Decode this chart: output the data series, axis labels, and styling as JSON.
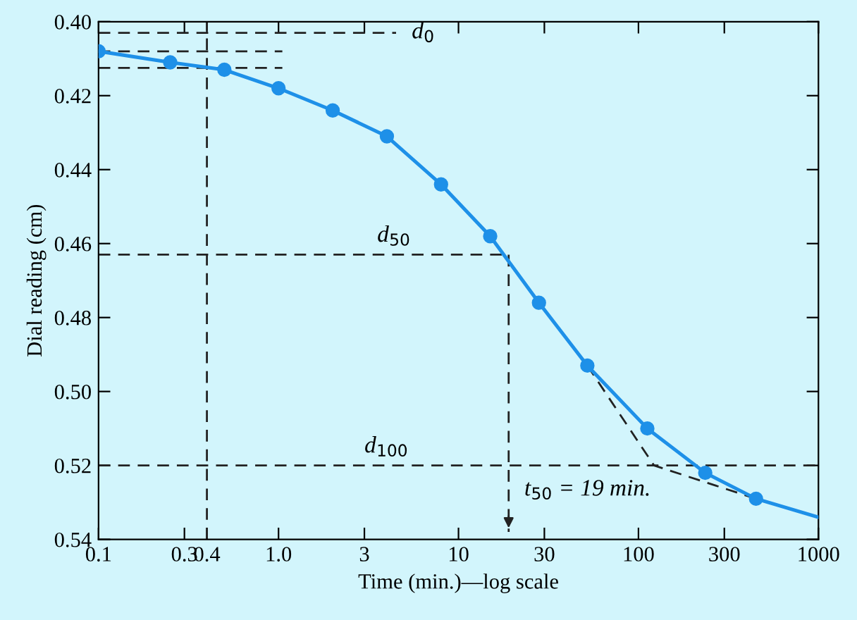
{
  "chart_data": {
    "type": "line",
    "xlabel": "Time (min.)—log scale",
    "ylabel": "Dial reading (cm)",
    "log": "x",
    "xlim": [
      0.1,
      1000
    ],
    "xticks": [
      0.1,
      0.3,
      0.4,
      {
        "value": 1,
        "label": "1.0"
      },
      3,
      10,
      30,
      100,
      300,
      1000
    ],
    "ylim": [
      0.54,
      0.4
    ],
    "yticks": [
      {
        "value": 0.4,
        "label": "0.40"
      },
      0.42,
      0.44,
      0.46,
      0.48,
      {
        "value": 0.5,
        "label": "0.50"
      },
      0.52,
      0.54
    ],
    "grid": false,
    "legend": false,
    "series": [
      {
        "color": "#1e90e8",
        "marker": "none",
        "line_style": "solid",
        "x": [
          0.1,
          0.25,
          0.5,
          1,
          2,
          4,
          8,
          15,
          28,
          52,
          112,
          235,
          450,
          1000
        ],
        "values": [
          0.408,
          0.411,
          0.413,
          0.418,
          0.424,
          0.431,
          0.444,
          0.458,
          0.476,
          0.493,
          0.51,
          0.522,
          0.529,
          0.534
        ]
      },
      {
        "type": "scatter",
        "color": "#1e90e8",
        "marker": "circle",
        "x": [
          0.1,
          0.25,
          0.5,
          1,
          2,
          4,
          8,
          15,
          28,
          52,
          112,
          235,
          450
        ],
        "values": [
          0.408,
          0.411,
          0.413,
          0.418,
          0.424,
          0.431,
          0.444,
          0.458,
          0.476,
          0.493,
          0.51,
          0.522,
          0.529
        ]
      },
      {
        "name": "d$_{0}$",
        "color": "#222222",
        "marker": "none",
        "line_style": "dashed",
        "x": [
          0.1,
          4.5
        ],
        "values": [
          0.403,
          0.403
        ]
      },
      {
        "color": "#222222",
        "marker": "none",
        "line_style": "dashed",
        "x": [
          0.1,
          1.05
        ],
        "values": [
          0.408,
          0.408
        ]
      },
      {
        "color": "#222222",
        "marker": "none",
        "line_style": "dashed",
        "x": [
          0.1,
          1.05
        ],
        "values": [
          0.4125,
          0.4125
        ]
      },
      {
        "name": "d$_{50}$",
        "color": "#222222",
        "marker": "none",
        "line_style": "dashed",
        "x": [
          0.1,
          19
        ],
        "values": [
          0.463,
          0.463
        ]
      },
      {
        "name": "t$_{50}$ = 19 min.",
        "color": "#222222",
        "marker": "none",
        "line_style": "dashed",
        "x": [
          19,
          19
        ],
        "values": [
          0.463,
          0.538
        ]
      },
      {
        "color": "#222222",
        "marker": "none",
        "line_style": "dashed",
        "x": [
          52,
          122,
          450
        ],
        "values": [
          0.493,
          0.52,
          0.529
        ]
      }
    ],
    "ref_lines": [
      {
        "axis": "x",
        "value": 0.4,
        "color": "#222222",
        "line_style": "dashed"
      },
      {
        "axis": "y",
        "value": 0.52,
        "color": "#222222",
        "line_style": "dashed",
        "label": "d$_{100}$"
      }
    ]
  }
}
